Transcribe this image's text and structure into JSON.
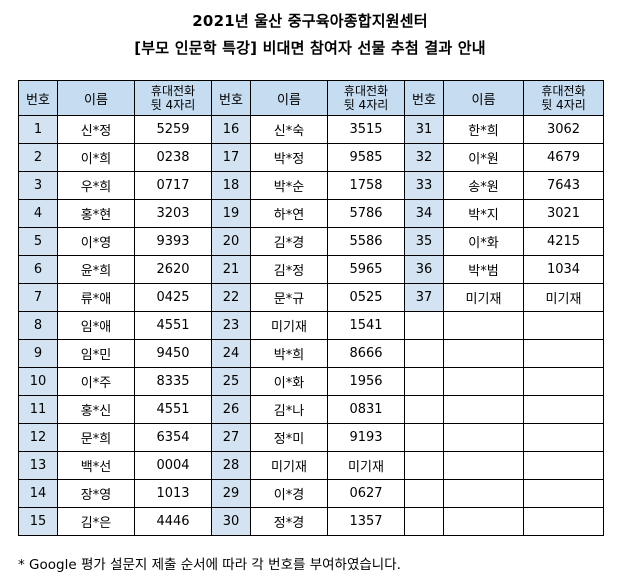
{
  "title_line1": "2021년 울산 중구육아종합지원센터",
  "title_line2": "[부모 인문학 특강] 비대면 참여자 선물 추첨 결과 안내",
  "header": {
    "num": "번호",
    "name": "이름",
    "phone_line1": "휴대전화",
    "phone_line2": "뒷 4자리"
  },
  "groups": [
    {
      "rows": [
        {
          "num": "1",
          "name": "신*정",
          "phone": "5259"
        },
        {
          "num": "2",
          "name": "이*희",
          "phone": "0238"
        },
        {
          "num": "3",
          "name": "우*희",
          "phone": "0717"
        },
        {
          "num": "4",
          "name": "홍*현",
          "phone": "3203"
        },
        {
          "num": "5",
          "name": "이*영",
          "phone": "9393"
        },
        {
          "num": "6",
          "name": "윤*희",
          "phone": "2620"
        },
        {
          "num": "7",
          "name": "류*애",
          "phone": "0425"
        },
        {
          "num": "8",
          "name": "임*애",
          "phone": "4551"
        },
        {
          "num": "9",
          "name": "임*민",
          "phone": "9450"
        },
        {
          "num": "10",
          "name": "이*주",
          "phone": "8335"
        },
        {
          "num": "11",
          "name": "홍*신",
          "phone": "4551"
        },
        {
          "num": "12",
          "name": "문*희",
          "phone": "6354"
        },
        {
          "num": "13",
          "name": "백*선",
          "phone": "0004"
        },
        {
          "num": "14",
          "name": "장*영",
          "phone": "1013"
        },
        {
          "num": "15",
          "name": "김*은",
          "phone": "4446"
        }
      ]
    },
    {
      "rows": [
        {
          "num": "16",
          "name": "신*숙",
          "phone": "3515"
        },
        {
          "num": "17",
          "name": "박*정",
          "phone": "9585"
        },
        {
          "num": "18",
          "name": "박*순",
          "phone": "1758"
        },
        {
          "num": "19",
          "name": "하*연",
          "phone": "5786"
        },
        {
          "num": "20",
          "name": "김*경",
          "phone": "5586"
        },
        {
          "num": "21",
          "name": "김*정",
          "phone": "5965"
        },
        {
          "num": "22",
          "name": "문*규",
          "phone": "0525"
        },
        {
          "num": "23",
          "name": "미기재",
          "phone": "1541"
        },
        {
          "num": "24",
          "name": "박*희",
          "phone": "8666"
        },
        {
          "num": "25",
          "name": "이*화",
          "phone": "1956"
        },
        {
          "num": "26",
          "name": "김*나",
          "phone": "0831"
        },
        {
          "num": "27",
          "name": "정*미",
          "phone": "9193"
        },
        {
          "num": "28",
          "name": "미기재",
          "phone": "미기재"
        },
        {
          "num": "29",
          "name": "이*경",
          "phone": "0627"
        },
        {
          "num": "30",
          "name": "정*경",
          "phone": "1357"
        }
      ]
    },
    {
      "rows": [
        {
          "num": "31",
          "name": "한*희",
          "phone": "3062"
        },
        {
          "num": "32",
          "name": "이*원",
          "phone": "4679"
        },
        {
          "num": "33",
          "name": "송*원",
          "phone": "7643"
        },
        {
          "num": "34",
          "name": "박*지",
          "phone": "3021"
        },
        {
          "num": "35",
          "name": "이*화",
          "phone": "4215"
        },
        {
          "num": "36",
          "name": "박*범",
          "phone": "1034"
        },
        {
          "num": "37",
          "name": "미기재",
          "phone": "미기재"
        }
      ]
    }
  ],
  "footnote": "* Google 평가 설문지 제출 순서에 따라 각 번호를 부여하였습니다.",
  "colors": {
    "header_bg": "#c6dcf0",
    "num_bg": "#d3e3f2"
  }
}
